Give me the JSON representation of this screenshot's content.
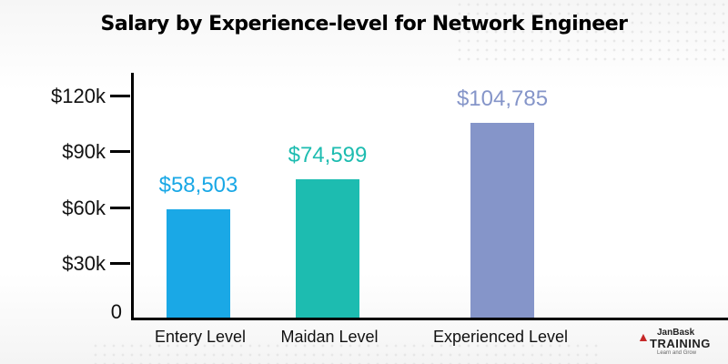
{
  "chart_data": {
    "type": "bar",
    "title": "Salary by Experience-level for Network Engineer",
    "categories": [
      "Entery Level",
      "Maidan Level",
      "Experienced Level"
    ],
    "values": [
      58503,
      74599,
      104785
    ],
    "value_labels": [
      "$58,503",
      "$74,599",
      "$104,785"
    ],
    "colors": [
      "#1aa8e6",
      "#1dbcb0",
      "#8595c9"
    ],
    "xlabel": "",
    "ylabel": "",
    "ylim": [
      0,
      120000
    ],
    "y_ticks": [
      0,
      30000,
      60000,
      90000,
      120000
    ],
    "y_tick_labels": [
      "0",
      "$30k",
      "$60k",
      "$90k",
      "$120k"
    ],
    "grid": false,
    "legend": "none"
  },
  "logo": {
    "brand_top": "Jan",
    "brand_top_accent": "Bask",
    "brand_main": "TRAINING",
    "tagline": "Learn and Grow"
  }
}
